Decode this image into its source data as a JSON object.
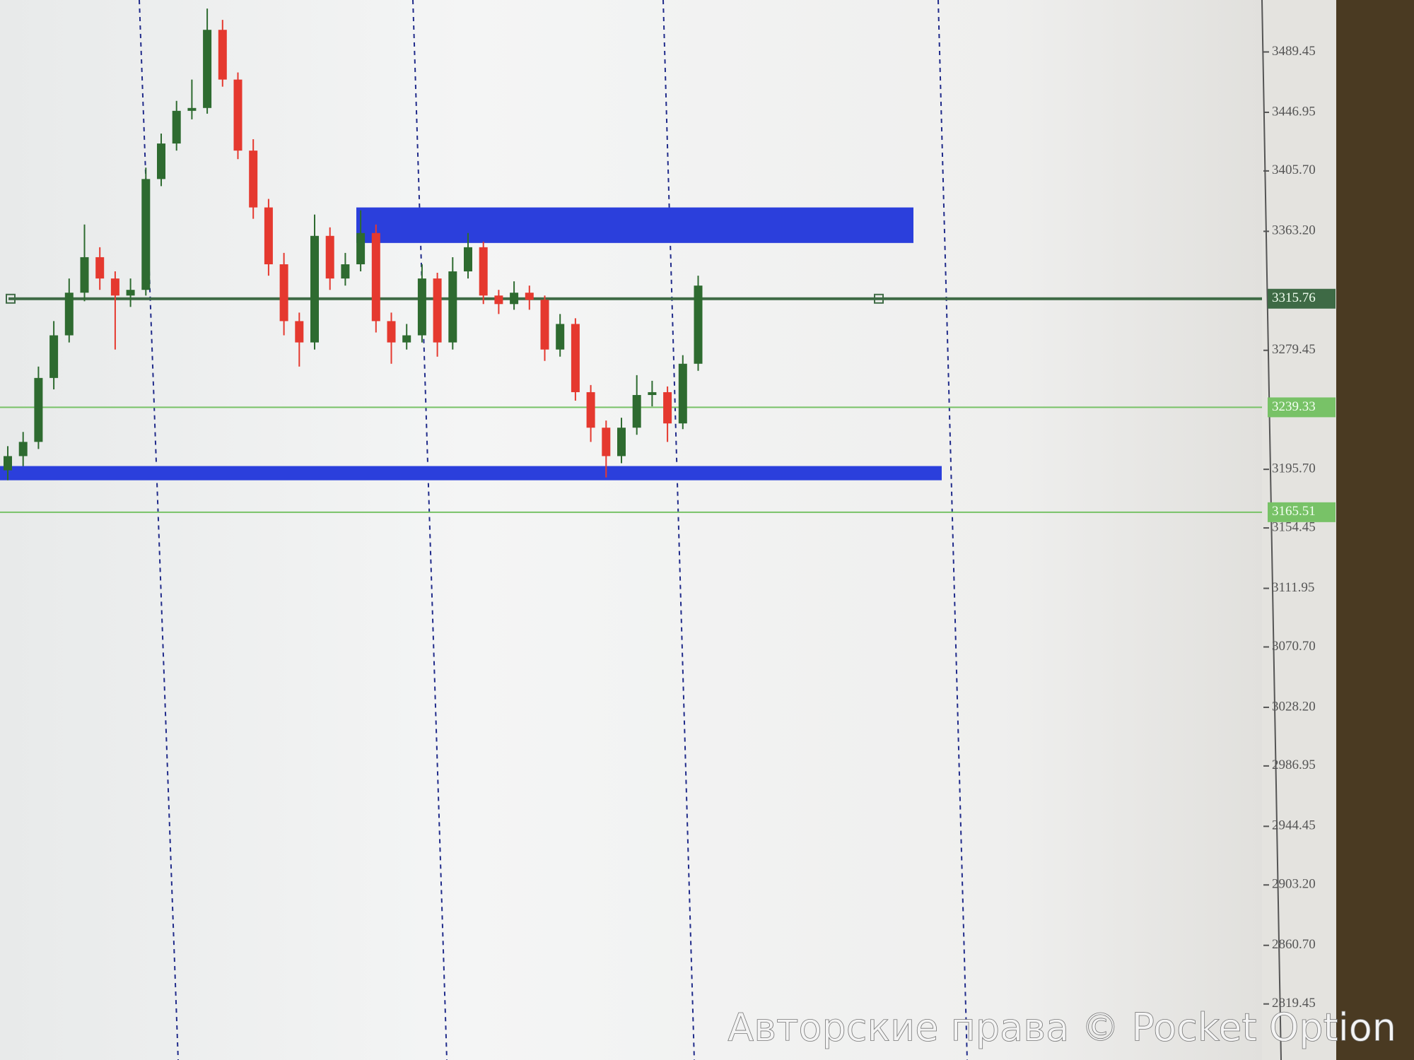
{
  "chart_data": {
    "type": "candlestick",
    "up_color": "#2e6b30",
    "down_color": "#e5392f",
    "ylim": [
      2780,
      3526
    ],
    "yticks": [
      3489.45,
      3446.95,
      {
        "value": 3405.7,
        "label": "3405.70"
      },
      {
        "value": 3363.2,
        "label": "3363.20"
      },
      3279.45,
      {
        "value": 3195.7,
        "label": "3195.70"
      },
      3154.45,
      3111.95,
      {
        "value": 3070.7,
        "label": "3070.70"
      },
      {
        "value": 3028.2,
        "label": "3028.20"
      },
      2986.95,
      2944.45,
      {
        "value": 2903.2,
        "label": "2903.20"
      },
      {
        "value": 2860.7,
        "label": "2860.70"
      },
      2819.45
    ],
    "series": [
      {
        "open": [
          3195,
          3205,
          3215,
          3260,
          3290,
          3320,
          3345,
          3330,
          3318,
          3322,
          3400,
          3425,
          3448,
          3450,
          3505,
          3470,
          3420,
          3380,
          3340,
          3300,
          3285,
          3360,
          3330,
          3340,
          3362,
          3300,
          3285,
          3290,
          3330,
          3285,
          3335,
          3352,
          3318,
          3312,
          3320,
          3315,
          3280,
          3298,
          3250,
          3225,
          3205,
          3225,
          3248,
          3250,
          3228,
          3270
        ],
        "high": [
          3212,
          3222,
          3268,
          3300,
          3330,
          3368,
          3352,
          3335,
          3330,
          3408,
          3432,
          3455,
          3470,
          3520,
          3512,
          3475,
          3428,
          3386,
          3348,
          3306,
          3375,
          3366,
          3348,
          3378,
          3368,
          3306,
          3298,
          3340,
          3334,
          3345,
          3362,
          3356,
          3322,
          3328,
          3325,
          3318,
          3305,
          3302,
          3255,
          3230,
          3232,
          3262,
          3258,
          3254,
          3276,
          3332
        ],
        "low": [
          3188,
          3198,
          3210,
          3252,
          3285,
          3314,
          3322,
          3280,
          3310,
          3318,
          3395,
          3420,
          3442,
          3446,
          3465,
          3414,
          3372,
          3332,
          3290,
          3268,
          3280,
          3322,
          3325,
          3335,
          3292,
          3270,
          3280,
          3285,
          3275,
          3280,
          3330,
          3312,
          3305,
          3308,
          3308,
          3272,
          3275,
          3244,
          3215,
          3190,
          3200,
          3220,
          3240,
          3215,
          3224,
          3265
        ],
        "close": [
          3205,
          3215,
          3260,
          3290,
          3320,
          3345,
          3330,
          3318,
          3322,
          3400,
          3425,
          3448,
          3450,
          3505,
          3470,
          3420,
          3380,
          3340,
          3300,
          3285,
          3360,
          3330,
          3340,
          3362,
          3300,
          3285,
          3290,
          3330,
          3285,
          3335,
          3352,
          3318,
          3312,
          3320,
          3315,
          3280,
          3298,
          3250,
          3225,
          3205,
          3225,
          3248,
          3250,
          3228,
          3270,
          3325
        ]
      }
    ],
    "zones": [
      {
        "low": 3355,
        "high": 3380,
        "color": "#2b3fdc"
      },
      {
        "low": 3188,
        "high": 3198,
        "color": "#2b3fdc"
      }
    ],
    "levels": [
      {
        "price": 3315.76,
        "color": "#3e6a45"
      },
      {
        "price": 3239.33,
        "color": "#78c267"
      },
      {
        "price": 3165.51,
        "color": "#78c267"
      }
    ],
    "watermark": "Авторские права © Pocket Option"
  }
}
